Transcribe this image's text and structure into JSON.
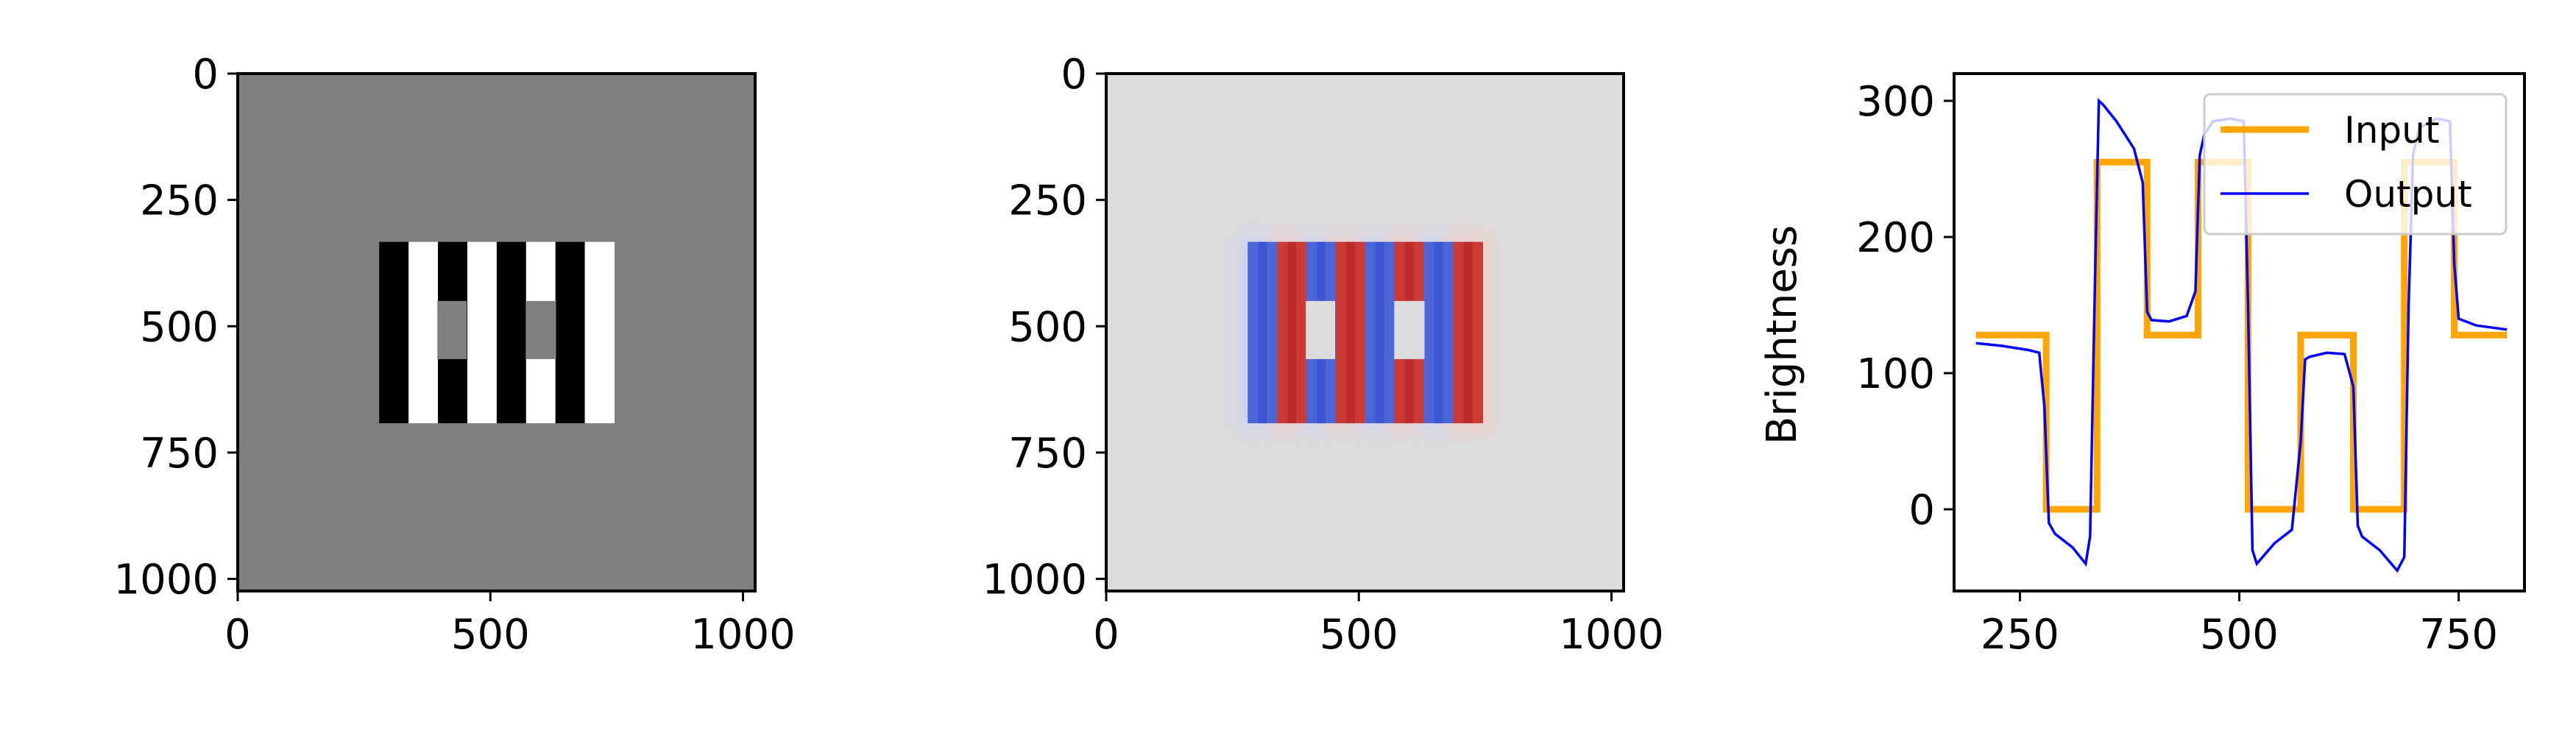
{
  "chart_data": [
    {
      "type": "heatmap",
      "panel": "input-image",
      "colormap": "gray",
      "background_value": 128,
      "image_extent": [
        0,
        1024
      ],
      "stripes": {
        "x_range": [
          280,
          745
        ],
        "y_range": [
          333,
          692
        ],
        "colors": [
          "black",
          "white",
          "black",
          "white",
          "black",
          "white",
          "black",
          "white"
        ],
        "gray_patches": [
          {
            "x": [
              395,
              453
            ],
            "y": [
              450,
              565
            ]
          },
          {
            "x": [
              570,
              630
            ],
            "y": [
              450,
              565
            ]
          }
        ]
      },
      "xlim": [
        0,
        1024
      ],
      "ylim": [
        1024,
        0
      ],
      "xticks": [
        "0",
        "500",
        "1000"
      ],
      "yticks": [
        "0",
        "250",
        "500",
        "750",
        "1000"
      ]
    },
    {
      "type": "heatmap",
      "panel": "output-image",
      "colormap": "coolwarm",
      "background_value": 128,
      "image_extent": [
        0,
        1024
      ],
      "stripes": {
        "x_range": [
          280,
          745
        ],
        "y_range": [
          333,
          692
        ],
        "colors": [
          "blue",
          "red",
          "blue",
          "red",
          "blue",
          "red",
          "blue",
          "red"
        ],
        "gray_patches": [
          {
            "x": [
              395,
              453
            ],
            "y": [
              450,
              565
            ]
          },
          {
            "x": [
              570,
              630
            ],
            "y": [
              450,
              565
            ]
          }
        ]
      },
      "xlim": [
        0,
        1024
      ],
      "ylim": [
        1024,
        0
      ],
      "xticks": [
        "0",
        "500",
        "1000"
      ],
      "yticks": [
        "0",
        "250",
        "500",
        "750",
        "1000"
      ]
    },
    {
      "type": "line",
      "panel": "brightness-profile",
      "ylabel": "Brightness",
      "xlim": [
        175,
        825
      ],
      "ylim": [
        -60,
        320
      ],
      "xticks": [
        250,
        500,
        750
      ],
      "yticks": [
        0,
        100,
        200,
        300
      ],
      "legend_position": "top-right",
      "series": [
        {
          "name": "Input",
          "color": "#FFA500",
          "x": [
            200,
            280,
            280,
            338,
            338,
            395,
            395,
            453,
            453,
            510,
            510,
            570,
            570,
            630,
            630,
            688,
            688,
            745,
            745,
            805
          ],
          "y": [
            128,
            128,
            0,
            0,
            255,
            255,
            128,
            128,
            255,
            255,
            0,
            0,
            128,
            128,
            0,
            0,
            255,
            255,
            128,
            128
          ]
        },
        {
          "name": "Output",
          "color": "#0000FF",
          "x": [
            200,
            230,
            260,
            272,
            278,
            283,
            290,
            310,
            325,
            330,
            335,
            340,
            345,
            360,
            380,
            390,
            395,
            400,
            420,
            440,
            450,
            455,
            460,
            470,
            490,
            505,
            510,
            515,
            520,
            540,
            560,
            570,
            575,
            580,
            600,
            620,
            630,
            635,
            640,
            660,
            680,
            688,
            693,
            698,
            705,
            725,
            740,
            745,
            750,
            770,
            805
          ],
          "y": [
            122,
            120,
            117,
            115,
            75,
            -10,
            -18,
            -28,
            -40,
            -20,
            150,
            300,
            297,
            285,
            265,
            240,
            145,
            139,
            138,
            142,
            160,
            260,
            275,
            285,
            287,
            285,
            150,
            -30,
            -40,
            -25,
            -15,
            50,
            110,
            112,
            115,
            114,
            90,
            -12,
            -20,
            -30,
            -45,
            -35,
            150,
            260,
            280,
            287,
            285,
            180,
            140,
            135,
            132
          ]
        }
      ]
    }
  ]
}
